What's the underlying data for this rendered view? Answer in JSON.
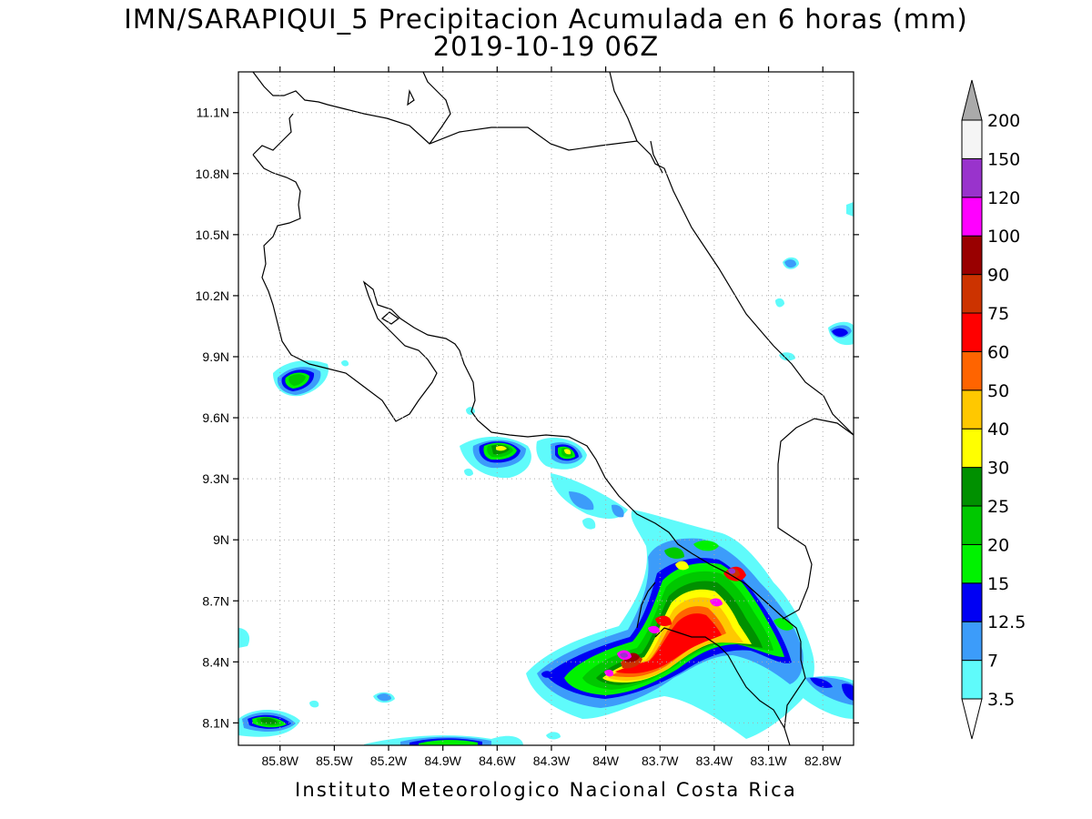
{
  "title": {
    "line1": "IMN/SARAPIQUI_5 Precipitacion Acumulada en 6 horas (mm)",
    "line2": "2019-10-19 06Z"
  },
  "footer": "Instituto Meteorologico Nacional Costa Rica",
  "map": {
    "lon_range": [
      -86.03,
      -82.63
    ],
    "lat_range": [
      7.99,
      11.3
    ],
    "lat_ticks": [
      {
        "value": 11.1,
        "label": "11.1N"
      },
      {
        "value": 10.8,
        "label": "10.8N"
      },
      {
        "value": 10.5,
        "label": "10.5N"
      },
      {
        "value": 10.2,
        "label": "10.2N"
      },
      {
        "value": 9.9,
        "label": "9.9N"
      },
      {
        "value": 9.6,
        "label": "9.6N"
      },
      {
        "value": 9.3,
        "label": "9.3N"
      },
      {
        "value": 9.0,
        "label": "9N"
      },
      {
        "value": 8.7,
        "label": "8.7N"
      },
      {
        "value": 8.4,
        "label": "8.4N"
      },
      {
        "value": 8.1,
        "label": "8.1N"
      }
    ],
    "lon_ticks": [
      {
        "value": -85.8,
        "label": "85.8W"
      },
      {
        "value": -85.5,
        "label": "85.5W"
      },
      {
        "value": -85.2,
        "label": "85.2W"
      },
      {
        "value": -84.9,
        "label": "84.9W"
      },
      {
        "value": -84.6,
        "label": "84.6W"
      },
      {
        "value": -84.3,
        "label": "84.3W"
      },
      {
        "value": -84.0,
        "label": "84W"
      },
      {
        "value": -83.7,
        "label": "83.7W"
      },
      {
        "value": -83.4,
        "label": "83.4W"
      },
      {
        "value": -83.1,
        "label": "83.1W"
      },
      {
        "value": -82.8,
        "label": "82.8W"
      }
    ],
    "grid": "dotted"
  },
  "colorbar": {
    "levels": [
      "3.5",
      "7",
      "12.5",
      "15",
      "20",
      "25",
      "30",
      "40",
      "50",
      "60",
      "75",
      "90",
      "100",
      "120",
      "150",
      "200"
    ],
    "colors": [
      "#5ffbfb",
      "#3c9cfa",
      "#0000f4",
      "#00f200",
      "#00c800",
      "#009000",
      "#ffff00",
      "#ffc800",
      "#ff6400",
      "#ff0000",
      "#cc3300",
      "#990000",
      "#ff00ff",
      "#9933cc",
      "#f5f5f5",
      "#aaaaaa"
    ],
    "low_end_color": "#ffffff",
    "high_end_color": "#aaaaaa"
  }
}
